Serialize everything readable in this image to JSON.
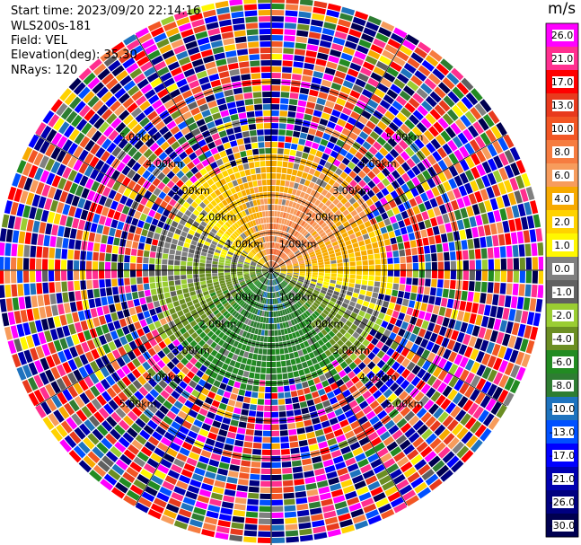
{
  "header": {
    "start_time": "Start time: 2023/09/20 22:14:16",
    "instrument": "WLS200s-181",
    "field": "Field: VEL",
    "elevation": "Elevation(deg): 35.30",
    "nrays": "NRays: 120"
  },
  "colorbar": {
    "unit": "m/s",
    "labels": [
      "26.0",
      "21.0",
      "17.0",
      "13.0",
      "10.0",
      "8.0",
      "6.0",
      "4.0",
      "2.0",
      "1.0",
      "0.0",
      "-1.0",
      "-2.0",
      "-4.0",
      "-6.0",
      "-8.0",
      "-10.0",
      "-13.0",
      "-17.0",
      "-21.0",
      "-26.0",
      "-30.0"
    ],
    "colors": [
      "#ff00ff",
      "#ff2f8f",
      "#ff0000",
      "#e83a1d",
      "#f25624",
      "#f67c40",
      "#f79c5c",
      "#f7aa00",
      "#ffd200",
      "#fff700",
      "#808080",
      "#606060",
      "#9acd32",
      "#6b8e23",
      "#228b22",
      "#2e7d32",
      "#1e73be",
      "#0050ff",
      "#0000ff",
      "#0000b0",
      "#000080",
      "#000050"
    ]
  },
  "chart_data": {
    "type": "ppi-polar",
    "field": "VEL",
    "units": "m/s",
    "range_rings_km": [
      1.0,
      2.0,
      3.0,
      4.0,
      5.0
    ],
    "ring_labels": [
      "1.00km",
      "2.00km",
      "3.00km",
      "4.00km",
      "5.00km"
    ],
    "spoke_angles_deg": [
      0,
      30,
      60,
      90,
      120,
      150,
      180,
      210,
      240,
      270,
      300,
      330
    ],
    "rays": 120,
    "valid_range_km": 3.4,
    "max_range_km": 7.2,
    "color_scale": {
      "bounds": [
        -30,
        -26,
        -21,
        -17,
        -13,
        -10,
        -8,
        -6,
        -4,
        -2,
        -1,
        0,
        1,
        2,
        4,
        6,
        8,
        10,
        13,
        17,
        21,
        26,
        30
      ]
    },
    "sectors": [
      {
        "azimuth_deg": 0,
        "velocity_near": 10.0,
        "velocity_far": 3.0
      },
      {
        "azimuth_deg": 30,
        "velocity_near": 10.0,
        "velocity_far": 5.0
      },
      {
        "azimuth_deg": 60,
        "velocity_near": 8.0,
        "velocity_far": 5.0
      },
      {
        "azimuth_deg": 90,
        "velocity_near": 4.0,
        "velocity_far": 3.0
      },
      {
        "azimuth_deg": 120,
        "velocity_near": -3.0,
        "velocity_far": -1.0
      },
      {
        "azimuth_deg": 150,
        "velocity_near": -8.0,
        "velocity_far": -4.0
      },
      {
        "azimuth_deg": 180,
        "velocity_near": -9.0,
        "velocity_far": -5.0
      },
      {
        "azimuth_deg": 210,
        "velocity_near": -7.0,
        "velocity_far": -5.0
      },
      {
        "azimuth_deg": 240,
        "velocity_near": -4.0,
        "velocity_far": -3.0
      },
      {
        "azimuth_deg": 270,
        "velocity_near": -3.0,
        "velocity_far": 0.0
      },
      {
        "azimuth_deg": 300,
        "velocity_near": 2.0,
        "velocity_far": 0.0
      },
      {
        "azimuth_deg": 330,
        "velocity_near": 5.0,
        "velocity_far": 3.0
      }
    ]
  }
}
